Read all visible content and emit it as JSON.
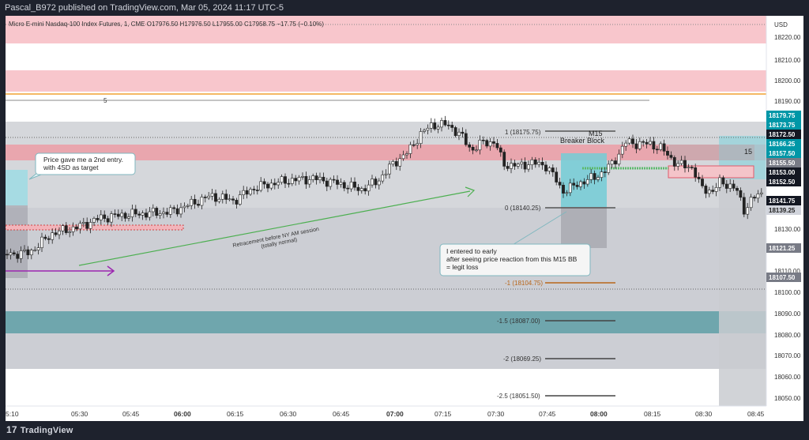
{
  "header": {
    "publisher_line": "Pascal_B972 published on TradingView.com, Mar 05, 2024 11:17 UTC-5"
  },
  "chart": {
    "symbol_line": "Micro E-mini Nasdaq-100 Index Futures, 1, CME  O17976.50  H17976.50  L17955.00  C17958.75  −17.75 (−0.10%)",
    "currency": "USD",
    "price_ticks": [
      "18220.00",
      "18210.00",
      "18200.00",
      "18190.00",
      "18130.00",
      "18110.00",
      "18100.00",
      "18090.00",
      "18080.00",
      "18070.00",
      "18060.00",
      "18050.00"
    ],
    "price_badges": [
      {
        "label": "18179.75",
        "color": "#0097a7"
      },
      {
        "label": "18173.75",
        "color": "#0097a7"
      },
      {
        "label": "18172.50",
        "color": "#131722"
      },
      {
        "label": "18166.25",
        "color": "#0097a7"
      },
      {
        "label": "18157.50",
        "color": "#0097a7"
      },
      {
        "label": "18155.50",
        "color": "#787b86"
      },
      {
        "label": "18153.00",
        "color": "#131722"
      },
      {
        "label": "18152.50",
        "color": "#131722"
      },
      {
        "label": "18141.75",
        "color": "#131722"
      },
      {
        "label": "18139.25",
        "color": "#d1d4dc"
      },
      {
        "label": "18121.25",
        "color": "#787b86"
      },
      {
        "label": "18107.50",
        "color": "#787b86"
      }
    ],
    "time_ticks": [
      "5:10",
      "05:30",
      "05:45",
      "06:00",
      "06:15",
      "06:30",
      "06:45",
      "07:00",
      "07:15",
      "07:30",
      "07:45",
      "08:00",
      "08:15",
      "08:30",
      "08:45"
    ],
    "fib_levels": [
      {
        "label": "1 (18175.75)",
        "color": "#555555"
      },
      {
        "label": "0 (18140.25)",
        "color": "#555555"
      },
      {
        "label": "-1 (18104.75)",
        "color": "#b8661a"
      },
      {
        "label": "-1.5 (18087.00)",
        "color": "#555555"
      },
      {
        "label": "-2 (18069.25)",
        "color": "#555555"
      },
      {
        "label": "-2.5 (18051.50)",
        "color": "#555555"
      }
    ],
    "annotations": {
      "entry_note_line1": "Price gave me a 2nd entry.",
      "entry_note_line2": "with 4SD as target",
      "loss_note_line1": "I entered to early",
      "loss_note_line2": "after seeing price reaction from this M15 BB",
      "loss_note_line3": "= legit loss",
      "retracement_line1": "Retracement before NY AM session",
      "retracement_line2": "(totally normal)",
      "breaker_line1": "M15",
      "breaker_line2": "Breaker Block",
      "level_5": "5",
      "box_15": "15"
    }
  },
  "footer": {
    "brand": "TradingView"
  }
}
